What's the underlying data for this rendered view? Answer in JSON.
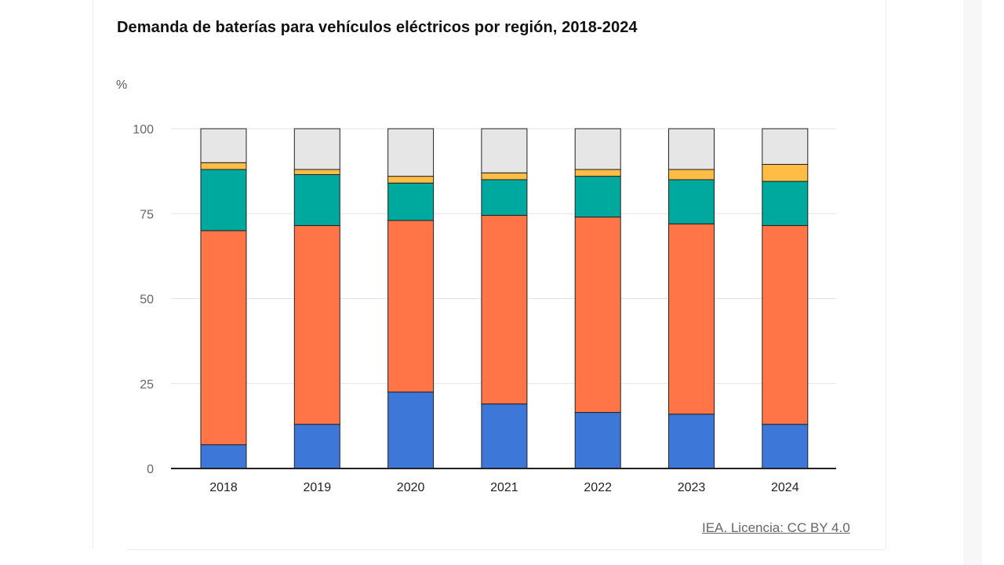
{
  "chart_data": {
    "type": "bar",
    "stacked": true,
    "title": "Demanda de baterías para vehículos eléctricos por región, 2018-2024",
    "ylabel": "%",
    "ylim": [
      0,
      100
    ],
    "yticks": [
      0,
      25,
      50,
      75,
      100
    ],
    "grid": true,
    "categories": [
      "2018",
      "2019",
      "2020",
      "2021",
      "2022",
      "2023",
      "2024"
    ],
    "series": [
      {
        "color": "#3d78d8",
        "values": [
          7.0,
          13.0,
          22.5,
          19.0,
          16.5,
          16.0,
          13.0
        ]
      },
      {
        "color": "#ff7548",
        "values": [
          63.0,
          58.5,
          50.5,
          55.5,
          57.5,
          56.0,
          58.5
        ]
      },
      {
        "color": "#00a99d",
        "values": [
          18.0,
          15.0,
          11.0,
          10.5,
          12.0,
          13.0,
          13.0
        ]
      },
      {
        "color": "#ffbd45",
        "values": [
          2.0,
          1.5,
          2.0,
          2.0,
          2.0,
          3.0,
          5.0
        ]
      },
      {
        "color": "#e6e6e6",
        "values": [
          10.0,
          12.0,
          14.0,
          13.0,
          12.0,
          12.0,
          10.5
        ]
      }
    ]
  },
  "credit": "IEA. Licencia: CC BY 4.0"
}
